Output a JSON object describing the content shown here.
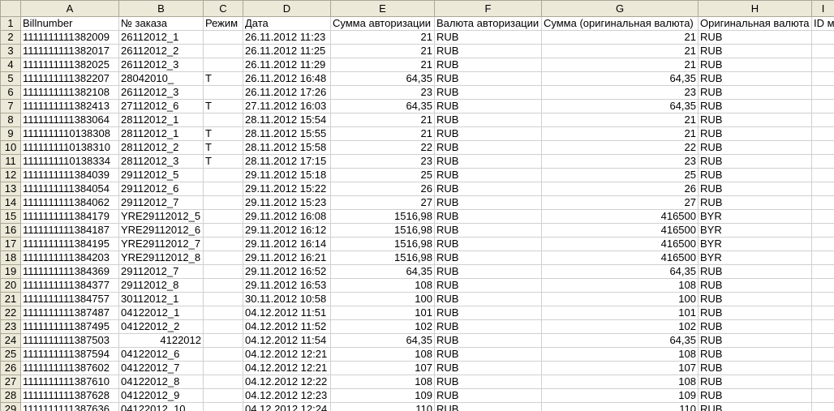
{
  "columns": [
    "A",
    "B",
    "C",
    "D",
    "E",
    "F",
    "G",
    "H",
    "I"
  ],
  "row_numbers": [
    1,
    2,
    3,
    4,
    5,
    6,
    7,
    8,
    9,
    10,
    11,
    12,
    13,
    14,
    15,
    16,
    17,
    18,
    19,
    20,
    21,
    22,
    23,
    24,
    25,
    26,
    27,
    28,
    29
  ],
  "rows": [
    [
      "Billnumber",
      "№ заказа",
      "Режим",
      "Дата",
      "Сумма авторизации",
      "Валюта авторизации",
      "Сумма (оригинальная валюта)",
      "Оригинальная валюта",
      "ID м"
    ],
    [
      "1111111111382009",
      "26112012_1",
      null,
      "26.11.2012 11:23",
      "21",
      "RUB",
      "21",
      "RUB",
      null
    ],
    [
      "1111111111382017",
      "26112012_2",
      null,
      "26.11.2012 11:25",
      "21",
      "RUB",
      "21",
      "RUB",
      null
    ],
    [
      "1111111111382025",
      "26112012_3",
      null,
      "26.11.2012 11:29",
      "21",
      "RUB",
      "21",
      "RUB",
      null
    ],
    [
      "1111111111382207",
      "28042010_",
      "T",
      "26.11.2012 16:48",
      "64,35",
      "RUB",
      "64,35",
      "RUB",
      null
    ],
    [
      "1111111111382108",
      "26112012_3",
      null,
      "26.11.2012 17:26",
      "23",
      "RUB",
      "23",
      "RUB",
      null
    ],
    [
      "1111111111382413",
      "27112012_6",
      "T",
      "27.11.2012 16:03",
      "64,35",
      "RUB",
      "64,35",
      "RUB",
      null
    ],
    [
      "1111111111383064",
      "28112012_1",
      null,
      "28.11.2012 15:54",
      "21",
      "RUB",
      "21",
      "RUB",
      null
    ],
    [
      "1111111110138308",
      "28112012_1",
      "T",
      "28.11.2012 15:55",
      "21",
      "RUB",
      "21",
      "RUB",
      null
    ],
    [
      "1111111110138310",
      "28112012_2",
      "T",
      "28.11.2012 15:58",
      "22",
      "RUB",
      "22",
      "RUB",
      null
    ],
    [
      "1111111110138334",
      "28112012_3",
      "T",
      "28.11.2012 17:15",
      "23",
      "RUB",
      "23",
      "RUB",
      null
    ],
    [
      "1111111111384039",
      "29112012_5",
      null,
      "29.11.2012 15:18",
      "25",
      "RUB",
      "25",
      "RUB",
      null
    ],
    [
      "1111111111384054",
      "29112012_6",
      null,
      "29.11.2012 15:22",
      "26",
      "RUB",
      "26",
      "RUB",
      null
    ],
    [
      "1111111111384062",
      "29112012_7",
      null,
      "29.11.2012 15:23",
      "27",
      "RUB",
      "27",
      "RUB",
      null
    ],
    [
      "1111111111384179",
      "YRE29112012_5",
      null,
      "29.11.2012 16:08",
      "1516,98",
      "RUB",
      "416500",
      "BYR",
      null
    ],
    [
      "1111111111384187",
      "YRE29112012_6",
      null,
      "29.11.2012 16:12",
      "1516,98",
      "RUB",
      "416500",
      "BYR",
      null
    ],
    [
      "1111111111384195",
      "YRE29112012_7",
      null,
      "29.11.2012 16:14",
      "1516,98",
      "RUB",
      "416500",
      "BYR",
      null
    ],
    [
      "1111111111384203",
      "YRE29112012_8",
      null,
      "29.11.2012 16:21",
      "1516,98",
      "RUB",
      "416500",
      "BYR",
      null
    ],
    [
      "1111111111384369",
      "29112012_7",
      null,
      "29.11.2012 16:52",
      "64,35",
      "RUB",
      "64,35",
      "RUB",
      null
    ],
    [
      "1111111111384377",
      "29112012_8",
      null,
      "29.11.2012 16:53",
      "108",
      "RUB",
      "108",
      "RUB",
      null
    ],
    [
      "1111111111384757",
      "30112012_1",
      null,
      "30.11.2012 10:58",
      "100",
      "RUB",
      "100",
      "RUB",
      null
    ],
    [
      "1111111111387487",
      "04122012_1",
      null,
      "04.12.2012 11:51",
      "101",
      "RUB",
      "101",
      "RUB",
      null
    ],
    [
      "1111111111387495",
      "04122012_2",
      null,
      "04.12.2012 11:52",
      "102",
      "RUB",
      "102",
      "RUB",
      null
    ],
    [
      "1111111111387503",
      "4122012",
      null,
      "04.12.2012 11:54",
      "64,35",
      "RUB",
      "64,35",
      "RUB",
      null
    ],
    [
      "1111111111387594",
      "04122012_6",
      null,
      "04.12.2012 12:21",
      "108",
      "RUB",
      "108",
      "RUB",
      null
    ],
    [
      "1111111111387602",
      "04122012_7",
      null,
      "04.12.2012 12:21",
      "107",
      "RUB",
      "107",
      "RUB",
      null
    ],
    [
      "1111111111387610",
      "04122012_8",
      null,
      "04.12.2012 12:22",
      "108",
      "RUB",
      "108",
      "RUB",
      null
    ],
    [
      "1111111111387628",
      "04122012_9",
      null,
      "04.12.2012 12:23",
      "109",
      "RUB",
      "109",
      "RUB",
      null
    ],
    [
      "1111111111387636",
      "04122012_10",
      null,
      "04.12.2012 12:24",
      "110",
      "RUB",
      "110",
      "RUB",
      null
    ]
  ]
}
